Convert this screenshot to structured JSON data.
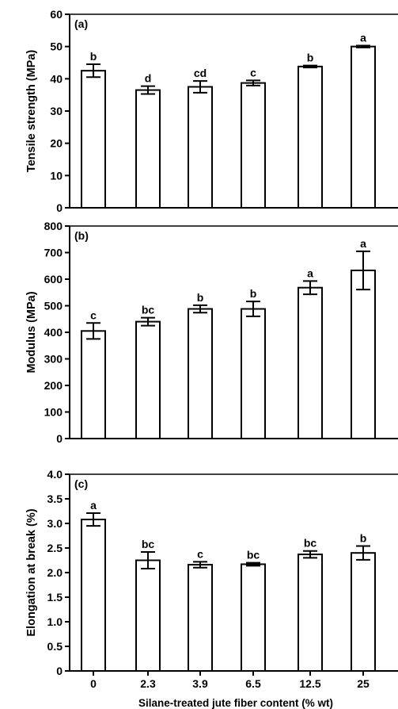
{
  "x_axis": {
    "label": "Silane-treated jute fiber content (% wt)",
    "tick_labels": [
      "0",
      "2.3",
      "3.9",
      "6.5",
      "12.5",
      "25"
    ]
  },
  "chart_data": [
    {
      "type": "bar",
      "panel_label": "(a)",
      "categories": [
        "0",
        "2.3",
        "3.9",
        "6.5",
        "12.5",
        "25"
      ],
      "values": [
        42.5,
        36.5,
        37.5,
        38.7,
        43.8,
        50.0
      ],
      "errors": [
        2.0,
        1.2,
        1.8,
        0.8,
        0.3,
        0.3
      ],
      "letters": [
        "b",
        "d",
        "cd",
        "c",
        "b",
        "a"
      ],
      "ylabel": "Tensile strength (MPa)",
      "ylim": [
        0,
        60
      ],
      "yticks": [
        "0",
        "10",
        "20",
        "30",
        "40",
        "50",
        "60"
      ],
      "xlabel": ""
    },
    {
      "type": "bar",
      "panel_label": "(b)",
      "categories": [
        "0",
        "2.3",
        "3.9",
        "6.5",
        "12.5",
        "25"
      ],
      "values": [
        405,
        440,
        488,
        488,
        568,
        633
      ],
      "errors": [
        30,
        15,
        14,
        28,
        25,
        72
      ],
      "letters": [
        "c",
        "bc",
        "b",
        "b",
        "a",
        "a"
      ],
      "ylabel": "Modulus (MPa)",
      "ylim": [
        0,
        800
      ],
      "yticks": [
        "0",
        "100",
        "200",
        "300",
        "400",
        "500",
        "600",
        "700",
        "800"
      ],
      "xlabel": ""
    },
    {
      "type": "bar",
      "panel_label": "(c)",
      "categories": [
        "0",
        "2.3",
        "3.9",
        "6.5",
        "12.5",
        "25"
      ],
      "values": [
        3.08,
        2.25,
        2.16,
        2.17,
        2.37,
        2.4
      ],
      "errors": [
        0.13,
        0.17,
        0.06,
        0.03,
        0.07,
        0.14
      ],
      "letters": [
        "a",
        "bc",
        "c",
        "bc",
        "bc",
        "b"
      ],
      "ylabel": "Elongation at break (%)",
      "ylim": [
        0,
        4.0
      ],
      "yticks": [
        "0",
        "0.5",
        "1.0",
        "1.5",
        "2.0",
        "2.5",
        "3.0",
        "3.5",
        "4.0"
      ],
      "xlabel": "Silane-treated jute fiber content (% wt)"
    }
  ]
}
